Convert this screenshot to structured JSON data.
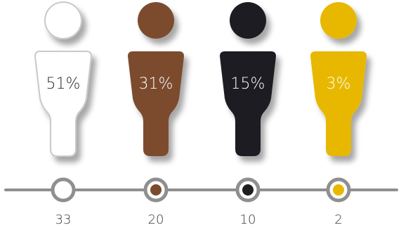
{
  "chart_data": {
    "type": "pictogram",
    "categories": [
      "51%",
      "31%",
      "15%",
      "3%"
    ],
    "series": [
      {
        "percent_labels": [
          "51%",
          "31%",
          "15%",
          "3%"
        ],
        "values": [
          33,
          20,
          10,
          2
        ]
      }
    ],
    "colors": [
      "#ffffff",
      "#7b4b2e",
      "#1f1f22",
      "#e8b800"
    ],
    "label_colors": [
      "#2a2a2a",
      "#ffffff",
      "#ffffff",
      "#ffffff"
    ],
    "figure_outline": "#c9c9c9",
    "timeline_color": "#8f8f8f"
  }
}
